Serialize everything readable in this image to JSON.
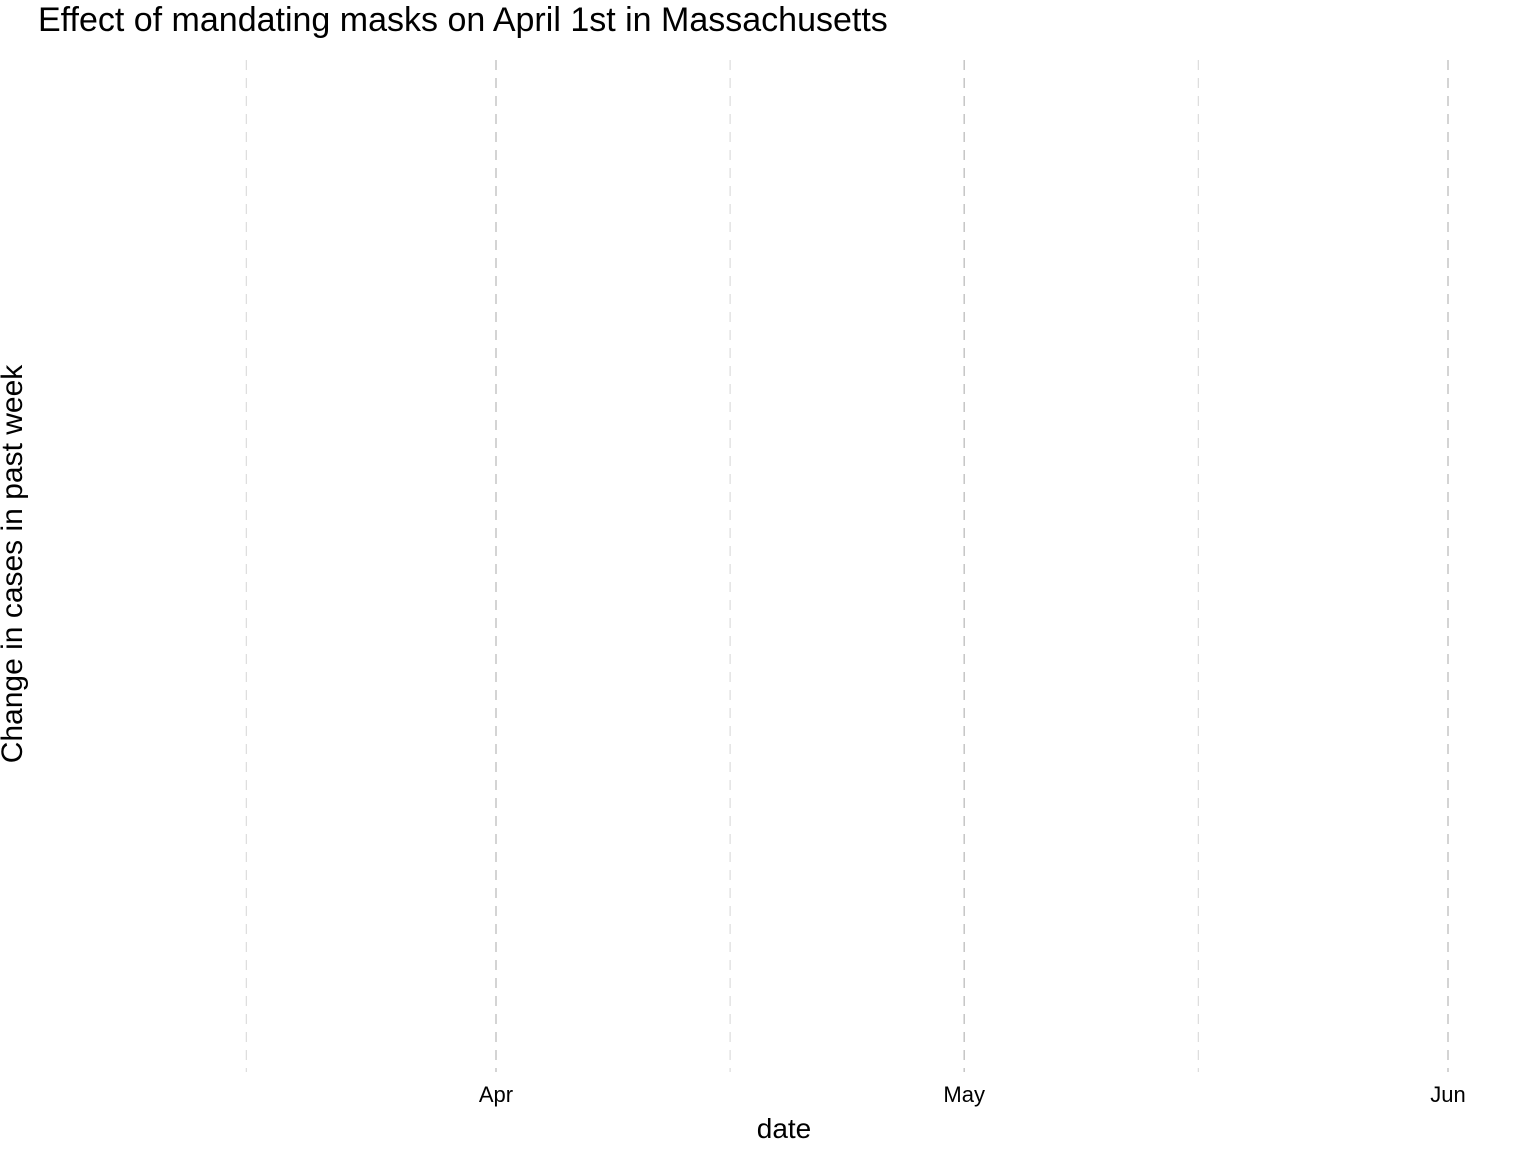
{
  "chart_data": {
    "type": "line",
    "title": "Effect of mandating masks on April 1st in Massachusetts",
    "xlabel": "date",
    "ylabel": "Change in cases in past week",
    "x_axis": {
      "scale": "date",
      "range": [
        "2020-03-16",
        "2020-06-01"
      ],
      "major_ticks": [
        {
          "date": "2020-04-01",
          "label": "Apr"
        },
        {
          "date": "2020-05-01",
          "label": "May"
        },
        {
          "date": "2020-06-01",
          "label": "Jun"
        }
      ],
      "minor_ticks": [
        "2020-03-16",
        "2020-04-16",
        "2020-05-16"
      ]
    },
    "grid": {
      "vertical": true,
      "horizontal": false,
      "style": "dashed",
      "color": "#bdbdbd"
    },
    "series": []
  }
}
